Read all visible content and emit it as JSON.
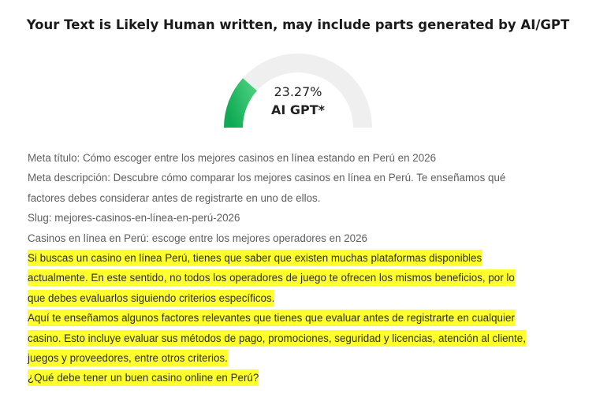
{
  "result": {
    "headline": "Your Text is Likely Human written, may include parts generated by AI/GPT",
    "percent_text": "23.27%",
    "percent_value": 23.27,
    "label": "AI GPT*",
    "colors": {
      "gauge_track": "#efefef",
      "gauge_fill_start": "#0faa55",
      "gauge_fill_end": "#46cc7a",
      "highlight": "#ffff2e"
    }
  },
  "lines": [
    {
      "text": "Meta título: Cómo escoger entre los mejores casinos en línea estando en Perú en 2026",
      "highlighted": false
    },
    {
      "text": "Meta descripción: Descubre cómo comparar los mejores casinos en línea en Perú. Te enseñamos qué",
      "highlighted": false
    },
    {
      "text": "factores debes considerar antes de registrarte en uno de ellos.",
      "highlighted": false
    },
    {
      "text": "Slug: mejores-casinos-en-línea-en-perú-2026",
      "highlighted": false
    },
    {
      "text": "Casinos en línea en Perú: escoge entre los mejores operadores en 2026",
      "highlighted": false
    },
    {
      "text": "Si buscas un casino en línea Perú, tienes que saber que existen muchas plataformas disponibles",
      "highlighted": true
    },
    {
      "text": "actualmente. En este sentido, no todos los operadores de juego te ofrecen los mismos beneficios, por lo",
      "highlighted": true
    },
    {
      "text": "que debes evaluarlos siguiendo criterios específicos.",
      "highlighted": true
    },
    {
      "text": "Aquí te enseñamos algunos factores relevantes que tienes que evaluar antes de registrarte en cualquier",
      "highlighted": true
    },
    {
      "text": "casino. Esto incluye evaluar sus métodos de pago, promociones, seguridad y licencias, atención al cliente,",
      "highlighted": true
    },
    {
      "text": "juegos y proveedores, entre otros criterios.",
      "highlighted": true
    },
    {
      "text": "¿Qué debe tener un buen casino online en Perú?",
      "highlighted": true
    }
  ]
}
